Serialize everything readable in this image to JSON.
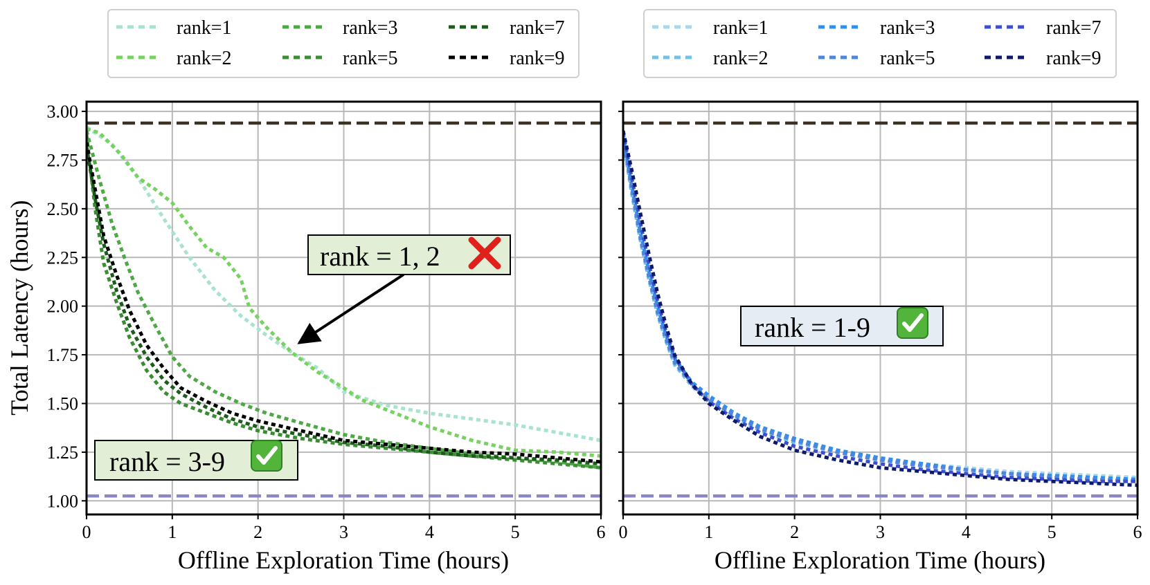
{
  "chart_data": [
    {
      "type": "line",
      "panel": "left",
      "xlabel": "Offline Exploration Time (hours)",
      "ylabel": "Total Latency (hours)",
      "xlim": [
        0,
        6
      ],
      "ylim": [
        0.93,
        3.05
      ],
      "xticks": [
        0,
        1,
        2,
        3,
        4,
        5,
        6
      ],
      "yticks": [
        1.0,
        1.25,
        1.5,
        1.75,
        2.0,
        2.25,
        2.5,
        2.75,
        3.0
      ],
      "grid": true,
      "legend_placement": "top, outside",
      "reference_lines": [
        {
          "y": 2.94,
          "color": "#3b3226",
          "style": "dashed"
        },
        {
          "y": 1.025,
          "color": "#8c87c4",
          "style": "dashed"
        }
      ],
      "series": [
        {
          "name": "rank=1",
          "color": "#a9e2cf",
          "x": [
            0,
            0.3,
            0.6,
            0.9,
            1.2,
            1.5,
            1.8,
            2.1,
            2.4,
            2.7,
            3.0,
            3.5,
            4.0,
            4.5,
            5.0,
            5.5,
            6.0
          ],
          "y": [
            2.92,
            2.83,
            2.66,
            2.45,
            2.25,
            2.08,
            1.95,
            1.85,
            1.76,
            1.68,
            1.56,
            1.49,
            1.45,
            1.42,
            1.39,
            1.35,
            1.31
          ]
        },
        {
          "name": "rank=2",
          "color": "#77d35f",
          "x": [
            0,
            0.15,
            0.4,
            0.6,
            0.8,
            1.0,
            1.2,
            1.4,
            1.6,
            1.8,
            1.9,
            2.1,
            2.4,
            2.7,
            3.0,
            3.2,
            3.6,
            4.0,
            4.5,
            5.0,
            5.5,
            6.0
          ],
          "y": [
            2.91,
            2.89,
            2.78,
            2.66,
            2.6,
            2.53,
            2.41,
            2.3,
            2.25,
            2.14,
            1.99,
            1.89,
            1.76,
            1.66,
            1.58,
            1.52,
            1.45,
            1.38,
            1.31,
            1.26,
            1.25,
            1.23
          ]
        },
        {
          "name": "rank=3",
          "color": "#4ea845",
          "x": [
            0,
            0.15,
            0.3,
            0.45,
            0.6,
            0.8,
            1.0,
            1.2,
            1.5,
            1.8,
            2.1,
            2.5,
            3.0,
            3.5,
            4.0,
            4.5,
            5.0,
            5.5,
            6.0
          ],
          "y": [
            2.9,
            2.65,
            2.42,
            2.24,
            2.07,
            1.9,
            1.74,
            1.64,
            1.56,
            1.5,
            1.45,
            1.4,
            1.34,
            1.3,
            1.27,
            1.24,
            1.22,
            1.2,
            1.17
          ]
        },
        {
          "name": "rank=5",
          "color": "#3a8e32",
          "x": [
            0,
            0.1,
            0.2,
            0.35,
            0.5,
            0.7,
            0.9,
            1.1,
            1.4,
            1.7,
            2.0,
            2.5,
            3.0,
            3.5,
            4.0,
            4.5,
            5.0,
            5.5,
            6.0
          ],
          "y": [
            2.88,
            2.5,
            2.22,
            2.02,
            1.84,
            1.67,
            1.56,
            1.5,
            1.45,
            1.4,
            1.36,
            1.32,
            1.29,
            1.27,
            1.25,
            1.23,
            1.21,
            1.19,
            1.17
          ]
        },
        {
          "name": "rank=7",
          "color": "#1d5c1d",
          "x": [
            0,
            0.1,
            0.2,
            0.35,
            0.5,
            0.7,
            0.9,
            1.1,
            1.4,
            1.7,
            2.0,
            2.5,
            3.0,
            3.5,
            4.0,
            4.5,
            5.0,
            5.5,
            6.0
          ],
          "y": [
            2.82,
            2.55,
            2.32,
            2.08,
            1.9,
            1.74,
            1.62,
            1.55,
            1.48,
            1.42,
            1.38,
            1.34,
            1.3,
            1.28,
            1.25,
            1.23,
            1.22,
            1.21,
            1.19
          ]
        },
        {
          "name": "rank=9",
          "color": "#000000",
          "x": [
            0,
            0.1,
            0.2,
            0.35,
            0.5,
            0.7,
            0.9,
            1.1,
            1.4,
            1.7,
            2.0,
            2.5,
            3.0,
            3.5,
            4.0,
            4.5,
            5.0,
            5.5,
            6.0
          ],
          "y": [
            2.84,
            2.6,
            2.36,
            2.16,
            1.98,
            1.8,
            1.68,
            1.58,
            1.51,
            1.45,
            1.41,
            1.36,
            1.31,
            1.29,
            1.27,
            1.25,
            1.24,
            1.22,
            1.2
          ]
        }
      ],
      "annotations": [
        {
          "text": "rank = 1, 2",
          "mark": "red-cross",
          "box_fill": "#e3eed6",
          "arrow_to": [
            2.45,
            1.79
          ],
          "arrow_from": [
            3.7,
            2.26
          ]
        },
        {
          "text": "rank = 3-9",
          "mark": "green-check",
          "box_fill": "#e3eed6"
        }
      ]
    },
    {
      "type": "line",
      "panel": "right",
      "xlabel": "Offline Exploration Time (hours)",
      "ylabel": "",
      "xlim": [
        0,
        6
      ],
      "ylim": [
        0.93,
        3.05
      ],
      "xticks": [
        0,
        1,
        2,
        3,
        4,
        5,
        6
      ],
      "yticks": [
        1.0,
        1.25,
        1.5,
        1.75,
        2.0,
        2.25,
        2.5,
        2.75,
        3.0
      ],
      "grid": true,
      "legend_placement": "top, outside",
      "reference_lines": [
        {
          "y": 2.94,
          "color": "#3b3226",
          "style": "dashed"
        },
        {
          "y": 1.025,
          "color": "#8c87c4",
          "style": "dashed"
        }
      ],
      "series": [
        {
          "name": "rank=1",
          "color": "#a9d6e8",
          "x": [
            0,
            0.1,
            0.2,
            0.3,
            0.4,
            0.5,
            0.6,
            0.8,
            1.0,
            1.3,
            1.6,
            2.0,
            2.5,
            3.0,
            3.5,
            4.0,
            4.5,
            5.0,
            5.5,
            6.0
          ],
          "y": [
            2.86,
            2.6,
            2.36,
            2.16,
            1.98,
            1.84,
            1.72,
            1.6,
            1.52,
            1.44,
            1.37,
            1.31,
            1.26,
            1.22,
            1.19,
            1.17,
            1.15,
            1.14,
            1.13,
            1.12
          ]
        },
        {
          "name": "rank=2",
          "color": "#72c2e6",
          "x": [
            0,
            0.1,
            0.2,
            0.3,
            0.4,
            0.5,
            0.6,
            0.8,
            1.0,
            1.3,
            1.6,
            2.0,
            2.5,
            3.0,
            3.5,
            4.0,
            4.5,
            5.0,
            5.5,
            6.0
          ],
          "y": [
            2.85,
            2.58,
            2.34,
            2.14,
            1.96,
            1.82,
            1.7,
            1.59,
            1.51,
            1.43,
            1.36,
            1.3,
            1.25,
            1.21,
            1.18,
            1.16,
            1.14,
            1.13,
            1.12,
            1.11
          ]
        },
        {
          "name": "rank=3",
          "color": "#2f8fef",
          "x": [
            0,
            0.1,
            0.2,
            0.3,
            0.4,
            0.5,
            0.6,
            0.8,
            1.0,
            1.3,
            1.6,
            2.0,
            2.5,
            3.0,
            3.5,
            4.0,
            4.5,
            5.0,
            5.5,
            6.0
          ],
          "y": [
            2.87,
            2.62,
            2.38,
            2.18,
            2.0,
            1.85,
            1.73,
            1.61,
            1.54,
            1.45,
            1.38,
            1.32,
            1.26,
            1.22,
            1.19,
            1.16,
            1.14,
            1.13,
            1.12,
            1.11
          ]
        },
        {
          "name": "rank=5",
          "color": "#4f86dc",
          "x": [
            0,
            0.1,
            0.2,
            0.3,
            0.4,
            0.5,
            0.6,
            0.8,
            1.0,
            1.3,
            1.6,
            2.0,
            2.5,
            3.0,
            3.5,
            4.0,
            4.5,
            5.0,
            5.5,
            6.0
          ],
          "y": [
            2.86,
            2.6,
            2.35,
            2.15,
            1.97,
            1.83,
            1.71,
            1.6,
            1.52,
            1.44,
            1.37,
            1.31,
            1.25,
            1.21,
            1.18,
            1.16,
            1.14,
            1.12,
            1.11,
            1.1
          ]
        },
        {
          "name": "rank=7",
          "color": "#3b4fd0",
          "x": [
            0,
            0.1,
            0.2,
            0.3,
            0.4,
            0.5,
            0.6,
            0.8,
            1.0,
            1.3,
            1.6,
            2.0,
            2.5,
            3.0,
            3.5,
            4.0,
            4.5,
            5.0,
            5.5,
            6.0
          ],
          "y": [
            2.89,
            2.66,
            2.43,
            2.22,
            2.03,
            1.87,
            1.74,
            1.6,
            1.51,
            1.42,
            1.35,
            1.28,
            1.23,
            1.19,
            1.16,
            1.14,
            1.12,
            1.11,
            1.1,
            1.1
          ]
        },
        {
          "name": "rank=9",
          "color": "#0c1a6e",
          "x": [
            0,
            0.1,
            0.2,
            0.3,
            0.4,
            0.5,
            0.6,
            0.8,
            1.0,
            1.3,
            1.6,
            2.0,
            2.5,
            3.0,
            3.5,
            4.0,
            4.5,
            5.0,
            5.5,
            6.0
          ],
          "y": [
            2.9,
            2.7,
            2.48,
            2.27,
            2.07,
            1.9,
            1.75,
            1.6,
            1.5,
            1.41,
            1.33,
            1.26,
            1.21,
            1.17,
            1.15,
            1.13,
            1.11,
            1.1,
            1.09,
            1.08
          ]
        }
      ],
      "annotations": [
        {
          "text": "rank = 1-9",
          "mark": "green-check",
          "box_fill": "#e6ecf4"
        }
      ]
    }
  ]
}
